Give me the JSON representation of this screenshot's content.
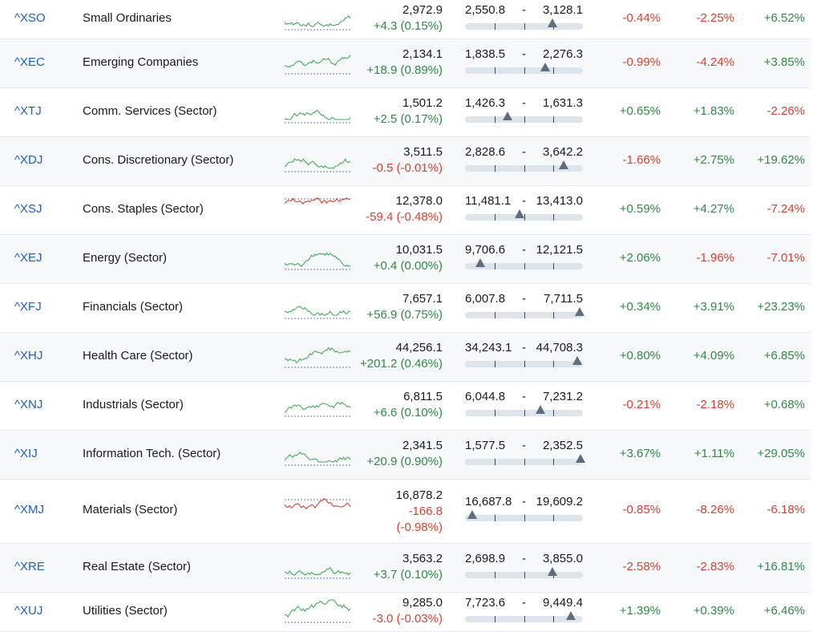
{
  "rows": [
    {
      "symbol": "^XSO",
      "name": "Small Ordinaries",
      "price": "2,972.9",
      "change": "+4.3 (0.15%)",
      "change_dir": "pos",
      "low": "2,550.8",
      "high": "3,128.1",
      "marker": 0.74,
      "p1": "-0.44%",
      "p2": "-2.25%",
      "p3": "+6.52%",
      "spark_dir": "pos"
    },
    {
      "symbol": "^XEC",
      "name": "Emerging Companies",
      "price": "2,134.1",
      "change": "+18.9 (0.89%)",
      "change_dir": "pos",
      "low": "1,838.5",
      "high": "2,276.3",
      "marker": 0.68,
      "p1": "-0.99%",
      "p2": "-4.24%",
      "p3": "+3.85%",
      "spark_dir": "pos"
    },
    {
      "symbol": "^XTJ",
      "name": "Comm. Services (Sector)",
      "price": "1,501.2",
      "change": "+2.5 (0.17%)",
      "change_dir": "pos",
      "low": "1,426.3",
      "high": "1,631.3",
      "marker": 0.36,
      "p1": "+0.65%",
      "p2": "+1.83%",
      "p3": "-2.26%",
      "spark_dir": "pos"
    },
    {
      "symbol": "^XDJ",
      "name": "Cons. Discretionary (Sector)",
      "price": "3,511.5",
      "change": "-0.5 (-0.01%)",
      "change_dir": "neg",
      "low": "2,828.6",
      "high": "3,642.2",
      "marker": 0.84,
      "p1": "-1.66%",
      "p2": "+2.75%",
      "p3": "+19.62%",
      "spark_dir": "pos"
    },
    {
      "symbol": "^XSJ",
      "name": "Cons. Staples (Sector)",
      "price": "12,378.0",
      "change": "-59.4 (-0.48%)",
      "change_dir": "neg",
      "low": "11,481.1",
      "high": "13,413.0",
      "marker": 0.46,
      "p1": "+0.59%",
      "p2": "+4.27%",
      "p3": "-7.24%",
      "spark_dir": "neg"
    },
    {
      "symbol": "^XEJ",
      "name": "Energy (Sector)",
      "price": "10,031.5",
      "change": "+0.4 (0.00%)",
      "change_dir": "pos",
      "low": "9,706.6",
      "high": "12,121.5",
      "marker": 0.13,
      "p1": "+2.06%",
      "p2": "-1.96%",
      "p3": "-7.01%",
      "spark_dir": "pos"
    },
    {
      "symbol": "^XFJ",
      "name": "Financials (Sector)",
      "price": "7,657.1",
      "change": "+56.9 (0.75%)",
      "change_dir": "pos",
      "low": "6,007.8",
      "high": "7,711.5",
      "marker": 0.97,
      "p1": "+0.34%",
      "p2": "+3.91%",
      "p3": "+23.23%",
      "spark_dir": "pos"
    },
    {
      "symbol": "^XHJ",
      "name": "Health Care (Sector)",
      "price": "44,256.1",
      "change": "+201.2 (0.46%)",
      "change_dir": "pos",
      "low": "34,243.1",
      "high": "44,708.3",
      "marker": 0.95,
      "p1": "+0.80%",
      "p2": "+4.09%",
      "p3": "+6.85%",
      "spark_dir": "pos"
    },
    {
      "symbol": "^XNJ",
      "name": "Industrials (Sector)",
      "price": "6,811.5",
      "change": "+6.6 (0.10%)",
      "change_dir": "pos",
      "low": "6,044.8",
      "high": "7,231.2",
      "marker": 0.64,
      "p1": "-0.21%",
      "p2": "-2.18%",
      "p3": "+0.68%",
      "spark_dir": "pos"
    },
    {
      "symbol": "^XIJ",
      "name": "Information Tech. (Sector)",
      "price": "2,341.5",
      "change": "+20.9 (0.90%)",
      "change_dir": "pos",
      "low": "1,577.5",
      "high": "2,352.5",
      "marker": 0.98,
      "p1": "+3.67%",
      "p2": "+1.11%",
      "p3": "+29.05%",
      "spark_dir": "pos"
    },
    {
      "symbol": "^XMJ",
      "name": "Materials (Sector)",
      "price": "16,878.2",
      "change": "-166.8",
      "change2": "(-0.98%)",
      "change_dir": "neg",
      "low": "16,687.8",
      "high": "19,609.2",
      "marker": 0.06,
      "p1": "-0.85%",
      "p2": "-8.26%",
      "p3": "-6.18%",
      "spark_dir": "neg"
    },
    {
      "symbol": "^XRE",
      "name": "Real Estate (Sector)",
      "price": "3,563.2",
      "change": "+3.7 (0.10%)",
      "change_dir": "pos",
      "low": "2,698.9",
      "high": "3,855.0",
      "marker": 0.74,
      "p1": "-2.58%",
      "p2": "-2.83%",
      "p3": "+16.81%",
      "spark_dir": "pos"
    },
    {
      "symbol": "^XUJ",
      "name": "Utilities (Sector)",
      "price": "9,285.0",
      "change": "-3.0 (-0.03%)",
      "change_dir": "neg",
      "low": "7,723.6",
      "high": "9,449.4",
      "marker": 0.9,
      "p1": "+1.39%",
      "p2": "+0.39%",
      "p3": "+6.46%",
      "spark_dir": "pos"
    }
  ],
  "colors": {
    "positive": "#2e8a47",
    "negative": "#d8412f",
    "link": "#1f5fbf",
    "spark_up": "#3fae5a",
    "spark_down": "#d8412f",
    "baseline": "#3a4aa8"
  }
}
